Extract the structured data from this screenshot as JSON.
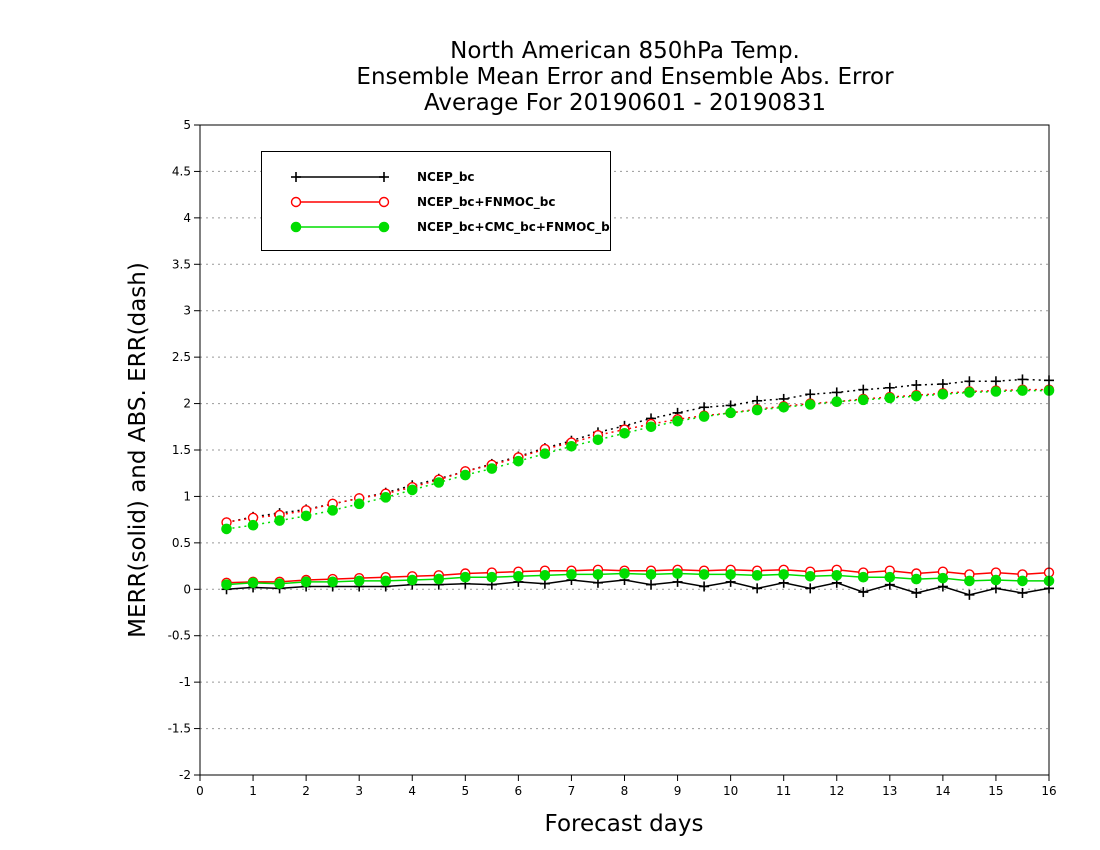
{
  "chart_data": {
    "type": "line",
    "title_lines": [
      "North American 850hPa Temp.",
      "Ensemble Mean Error and Ensemble Abs. Error",
      "Average For 20190601 - 20190831"
    ],
    "xlabel": "Forecast days",
    "ylabel": "MERR(solid) and ABS. ERR(dash)",
    "xlim": [
      0,
      16
    ],
    "ylim": [
      -2,
      5
    ],
    "xticks": [
      0,
      1,
      2,
      3,
      4,
      5,
      6,
      7,
      8,
      9,
      10,
      11,
      12,
      13,
      14,
      15,
      16
    ],
    "yticks": [
      -2,
      -1.5,
      -1,
      -0.5,
      0,
      0.5,
      1,
      1.5,
      2,
      2.5,
      3,
      3.5,
      4,
      4.5,
      5
    ],
    "ytick_labels": [
      "-2",
      "-1.5",
      "-1",
      "-0.5",
      "0",
      "0.5",
      "1",
      "1.5",
      "2",
      "2.5",
      "3",
      "3.5",
      "4",
      "4.5",
      "5"
    ],
    "grid": "horizontal dotted",
    "legend_position": "top-left",
    "x": [
      0.5,
      1,
      1.5,
      2,
      2.5,
      3,
      3.5,
      4,
      4.5,
      5,
      5.5,
      6,
      6.5,
      7,
      7.5,
      8,
      8.5,
      9,
      9.5,
      10,
      10.5,
      11,
      11.5,
      12,
      12.5,
      13,
      13.5,
      14,
      14.5,
      15,
      15.5,
      16
    ],
    "series": [
      {
        "name": "NCEP_bc",
        "color": "#000000",
        "marker": "plus",
        "merr": [
          0.0,
          0.02,
          0.01,
          0.03,
          0.03,
          0.03,
          0.03,
          0.05,
          0.05,
          0.06,
          0.05,
          0.08,
          0.06,
          0.1,
          0.07,
          0.1,
          0.05,
          0.08,
          0.03,
          0.08,
          0.01,
          0.07,
          0.01,
          0.07,
          -0.03,
          0.05,
          -0.04,
          0.03,
          -0.06,
          0.01,
          -0.04,
          0.01
        ],
        "abs_err": [
          0.72,
          0.78,
          0.82,
          0.86,
          0.92,
          0.98,
          1.04,
          1.12,
          1.19,
          1.27,
          1.35,
          1.43,
          1.52,
          1.6,
          1.69,
          1.76,
          1.84,
          1.9,
          1.96,
          1.98,
          2.03,
          2.05,
          2.1,
          2.12,
          2.15,
          2.17,
          2.2,
          2.21,
          2.24,
          2.24,
          2.26,
          2.25
        ]
      },
      {
        "name": "NCEP_bc+FNMOC_bc",
        "color": "#ff0000",
        "marker": "open-circle",
        "merr": [
          0.07,
          0.08,
          0.08,
          0.1,
          0.11,
          0.12,
          0.13,
          0.14,
          0.15,
          0.17,
          0.18,
          0.19,
          0.2,
          0.2,
          0.21,
          0.2,
          0.2,
          0.21,
          0.2,
          0.21,
          0.2,
          0.21,
          0.19,
          0.21,
          0.18,
          0.2,
          0.17,
          0.19,
          0.16,
          0.18,
          0.16,
          0.18
        ],
        "abs_err": [
          0.72,
          0.77,
          0.8,
          0.85,
          0.92,
          0.98,
          1.03,
          1.1,
          1.18,
          1.27,
          1.34,
          1.42,
          1.51,
          1.58,
          1.66,
          1.72,
          1.78,
          1.83,
          1.87,
          1.9,
          1.94,
          1.97,
          2.0,
          2.02,
          2.05,
          2.07,
          2.09,
          2.11,
          2.13,
          2.14,
          2.15,
          2.15
        ]
      },
      {
        "name": "NCEP_bc+CMC_bc+FNMOC_bc",
        "color": "#00dd00",
        "marker": "filled-circle",
        "merr": [
          0.05,
          0.07,
          0.06,
          0.08,
          0.08,
          0.09,
          0.09,
          0.1,
          0.11,
          0.13,
          0.13,
          0.14,
          0.15,
          0.16,
          0.16,
          0.17,
          0.16,
          0.17,
          0.16,
          0.16,
          0.15,
          0.16,
          0.14,
          0.15,
          0.13,
          0.13,
          0.11,
          0.12,
          0.09,
          0.1,
          0.09,
          0.09
        ],
        "abs_err": [
          0.65,
          0.69,
          0.74,
          0.79,
          0.85,
          0.92,
          0.99,
          1.07,
          1.15,
          1.23,
          1.3,
          1.38,
          1.46,
          1.54,
          1.61,
          1.68,
          1.75,
          1.81,
          1.86,
          1.9,
          1.93,
          1.96,
          1.99,
          2.02,
          2.04,
          2.06,
          2.08,
          2.1,
          2.12,
          2.13,
          2.14,
          2.14
        ]
      }
    ]
  }
}
